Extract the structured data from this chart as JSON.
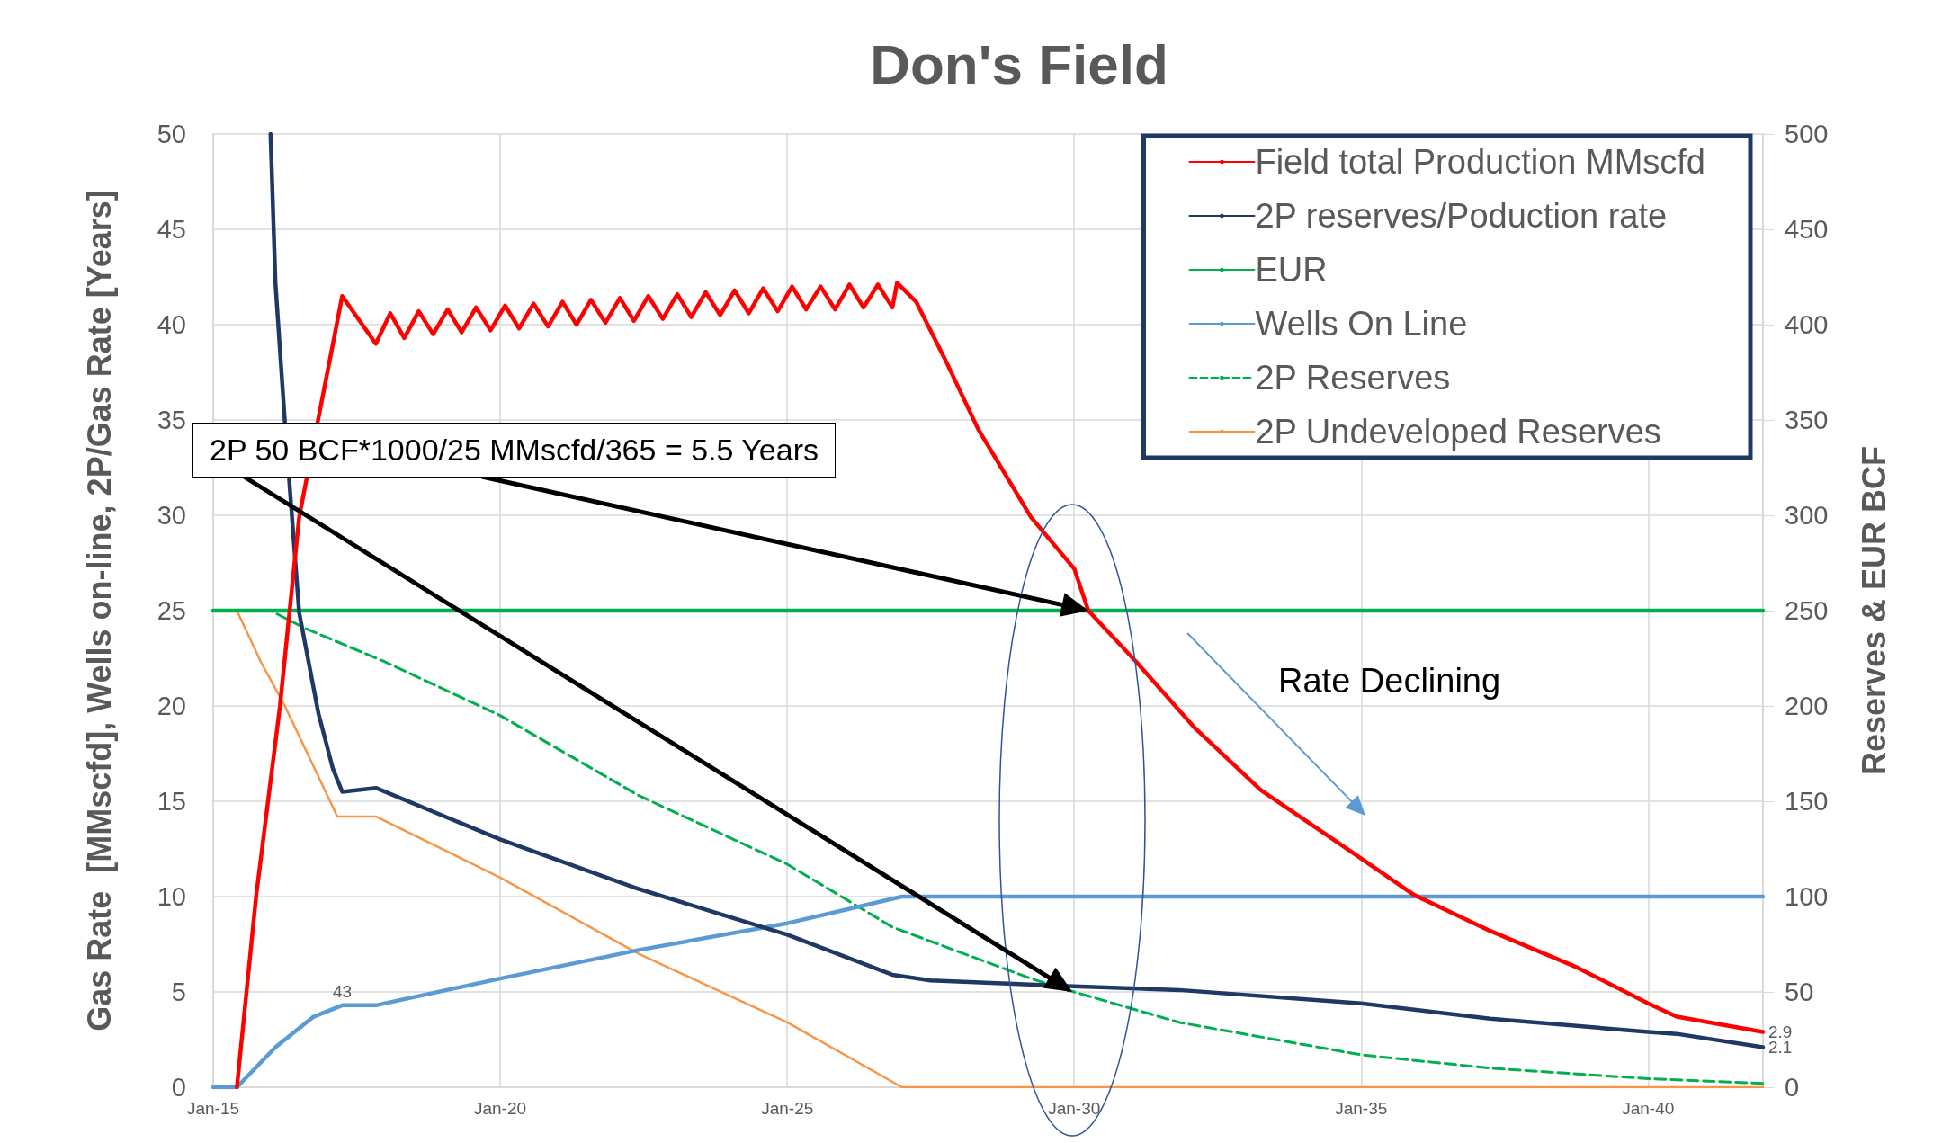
{
  "chart_data": {
    "type": "line",
    "title": "Don's Field",
    "ylabel": "Gas Rate  [MMscfd], Wells on-line, 2P/Gas Rate [Years]",
    "y2label": "Reserves & EUR BCF",
    "annotations": [
      {
        "text": "2P 50 BCF*1000/25 MMscfd/365 = 5.5 Years",
        "x": "2030-04",
        "y": 25
      },
      "Rate Declining"
    ],
    "xlim": [
      "2015-01",
      "2042-01"
    ],
    "xticks": [
      {
        "value": "2015-01",
        "label": "Jan-15"
      },
      {
        "value": "2020-01",
        "label": "Jan-20"
      },
      {
        "value": "2025-01",
        "label": "Jan-25"
      },
      {
        "value": "2030-01",
        "label": "Jan-30"
      },
      {
        "value": "2035-01",
        "label": "Jan-35"
      },
      {
        "value": "2040-01",
        "label": "Jan-40"
      }
    ],
    "ylim": [
      0,
      50
    ],
    "yticks": [
      0,
      5,
      10,
      15,
      20,
      25,
      30,
      35,
      40,
      45,
      50
    ],
    "y2lim": [
      0,
      500
    ],
    "y2ticks": [
      0,
      50,
      100,
      150,
      200,
      250,
      300,
      350,
      400,
      450,
      500
    ],
    "grid": true,
    "legend": "top right",
    "marker": "none",
    "series": [
      {
        "name": "Field total Production MMscfd",
        "color": "#ff0000",
        "x": [
          "2015-06",
          "2015-10",
          "2016-03",
          "2016-07",
          "2017-02",
          "2017-04",
          "2017-11",
          "2018-02",
          "2018-05",
          "2018-08",
          "2018-11",
          "2019-02",
          "2019-05",
          "2019-08",
          "2019-11",
          "2020-02",
          "2020-05",
          "2020-08",
          "2020-11",
          "2021-02",
          "2021-05",
          "2021-08",
          "2021-11",
          "2022-02",
          "2022-05",
          "2022-08",
          "2022-11",
          "2023-02",
          "2023-05",
          "2023-08",
          "2023-11",
          "2024-02",
          "2024-05",
          "2024-08",
          "2024-11",
          "2025-02",
          "2025-05",
          "2025-08",
          "2025-11",
          "2026-02",
          "2026-05",
          "2026-08",
          "2026-11",
          "2026-12",
          "2027-04",
          "2027-10",
          "2028-05",
          "2029-04",
          "2030-01",
          "2030-04",
          "2031-02",
          "2032-02",
          "2033-04",
          "2035-01",
          "2035-12",
          "2037-04",
          "2038-10",
          "2040-01",
          "2040-07",
          "2042-01"
        ],
        "values": [
          0,
          10,
          20,
          29.9,
          39,
          41.5,
          39,
          40.6,
          39.3,
          40.7,
          39.5,
          40.8,
          39.6,
          40.9,
          39.7,
          41,
          39.8,
          41.1,
          39.9,
          41.2,
          40,
          41.3,
          40.1,
          41.4,
          40.2,
          41.5,
          40.3,
          41.6,
          40.4,
          41.7,
          40.5,
          41.8,
          40.6,
          41.9,
          40.7,
          42,
          40.8,
          42,
          40.8,
          42.1,
          40.9,
          42.1,
          40.9,
          42.2,
          41.2,
          38.2,
          34.5,
          29.9,
          27.2,
          25,
          22.3,
          18.9,
          15.6,
          12,
          10.1,
          8.2,
          6.3,
          4.4,
          3.7,
          2.9
        ],
        "value_labels": [
          null,
          null,
          null,
          null,
          null,
          null,
          null,
          null,
          null,
          null,
          null,
          null,
          null,
          null,
          null,
          null,
          null,
          null,
          null,
          null,
          null,
          null,
          null,
          null,
          null,
          null,
          null,
          null,
          null,
          null,
          null,
          null,
          null,
          null,
          null,
          null,
          null,
          null,
          null,
          null,
          null,
          null,
          null,
          null,
          null,
          null,
          null,
          null,
          null,
          null,
          null,
          null,
          null,
          null,
          null,
          null,
          null,
          null,
          null,
          "2.9"
        ]
      },
      {
        "name": "2P reserves/Poduction rate",
        "color": "#203864",
        "x": [
          "2016-01",
          "2016-02",
          "2016-04",
          "2016-07",
          "2016-11",
          "2017-02",
          "2017-04",
          "2017-11",
          "2020-01",
          "2022-06",
          "2025-01",
          "2026-11",
          "2027-07",
          "2030-01",
          "2031-11",
          "2035-01",
          "2037-04",
          "2040-01",
          "2040-07",
          "2042-01"
        ],
        "values": [
          50,
          42.2,
          34.9,
          24.9,
          19.6,
          16.7,
          15.5,
          15.7,
          13,
          10.4,
          8,
          5.9,
          5.6,
          5.3,
          5.1,
          4.4,
          3.6,
          2.9,
          2.8,
          2.1
        ],
        "value_labels": [
          null,
          null,
          null,
          null,
          null,
          null,
          null,
          null,
          null,
          null,
          null,
          null,
          null,
          null,
          null,
          null,
          null,
          null,
          null,
          "2.1"
        ]
      },
      {
        "name": "EUR",
        "color": "#00b050",
        "axis": "y2",
        "x": [
          "2015-01",
          "2042-01"
        ],
        "values": [
          250,
          250
        ]
      },
      {
        "name": "Wells On Line",
        "color": "#5b9bd5",
        "axis": "y2",
        "x": [
          "2015-01",
          "2015-06",
          "2016-02",
          "2016-10",
          "2017-04",
          "2017-11",
          "2020-01",
          "2022-06",
          "2025-01",
          "2027-01",
          "2042-01"
        ],
        "values": [
          0,
          0,
          21,
          37,
          43,
          43,
          57,
          72,
          86,
          100,
          100
        ],
        "value_labels": [
          null,
          null,
          null,
          null,
          "43",
          null,
          null,
          null,
          null,
          null,
          null
        ]
      },
      {
        "name": "2P Reserves",
        "color": "#00b050",
        "axis": "y2",
        "line_style": "dashed",
        "x": [
          "2015-01",
          "2016-01",
          "2016-08",
          "2018-01",
          "2020-01",
          "2022-06",
          "2025-01",
          "2026-11",
          "2029-04",
          "2030-01",
          "2031-11",
          "2035-01",
          "2037-04",
          "2040-01",
          "2042-01"
        ],
        "values": [
          250,
          250,
          241,
          223,
          195,
          153,
          117,
          84,
          57,
          50,
          34,
          17,
          10,
          4.5,
          2
        ]
      },
      {
        "name": "2P Undeveloped Reserves",
        "color": "#f79646",
        "axis": "y2",
        "x": [
          "2015-01",
          "2015-06",
          "2015-11",
          "2016-04",
          "2017-03",
          "2017-11",
          "2020-01",
          "2022-06",
          "2025-01",
          "2027-01",
          "2042-01"
        ],
        "values": [
          250,
          250,
          223,
          200,
          142,
          142,
          110,
          70,
          34,
          0,
          0
        ]
      }
    ]
  }
}
